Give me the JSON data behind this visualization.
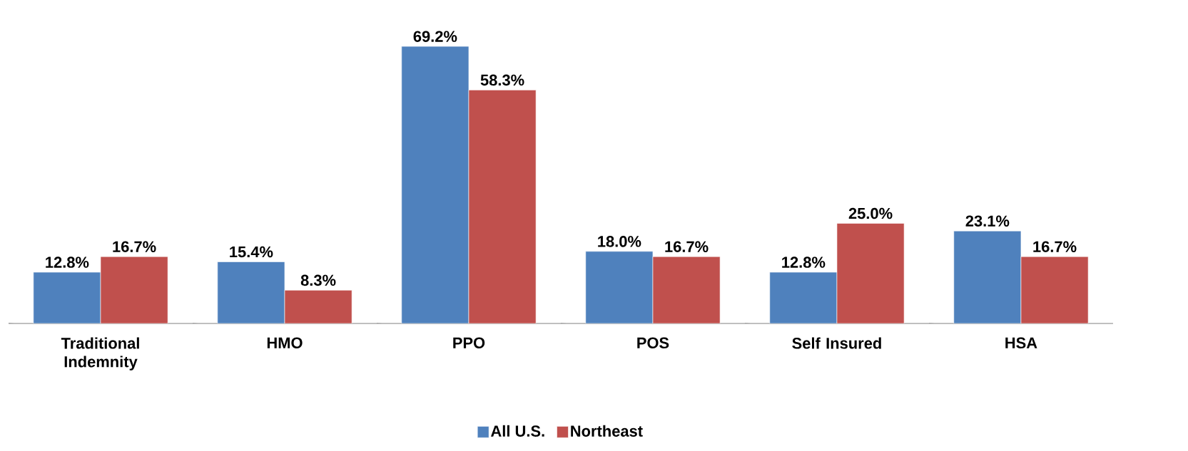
{
  "chart_data": {
    "type": "bar",
    "categories": [
      "Traditional Indemnity",
      "HMO",
      "PPO",
      "POS",
      "Self Insured",
      "HSA"
    ],
    "series": [
      {
        "name": "All U.S.",
        "color": "#4f81bd",
        "values": [
          12.8,
          15.4,
          69.2,
          18.0,
          12.8,
          23.1
        ],
        "value_labels": [
          "12.8%",
          "15.4%",
          "69.2%",
          "18.0%",
          "12.8%",
          "23.1%"
        ]
      },
      {
        "name": "Northeast",
        "color": "#c0504d",
        "values": [
          16.7,
          8.3,
          58.3,
          16.7,
          25.0,
          16.7
        ],
        "value_labels": [
          "16.7%",
          "8.3%",
          "58.3%",
          "16.7%",
          "25.0%",
          "16.7%"
        ]
      }
    ],
    "legend": "bottom"
  }
}
